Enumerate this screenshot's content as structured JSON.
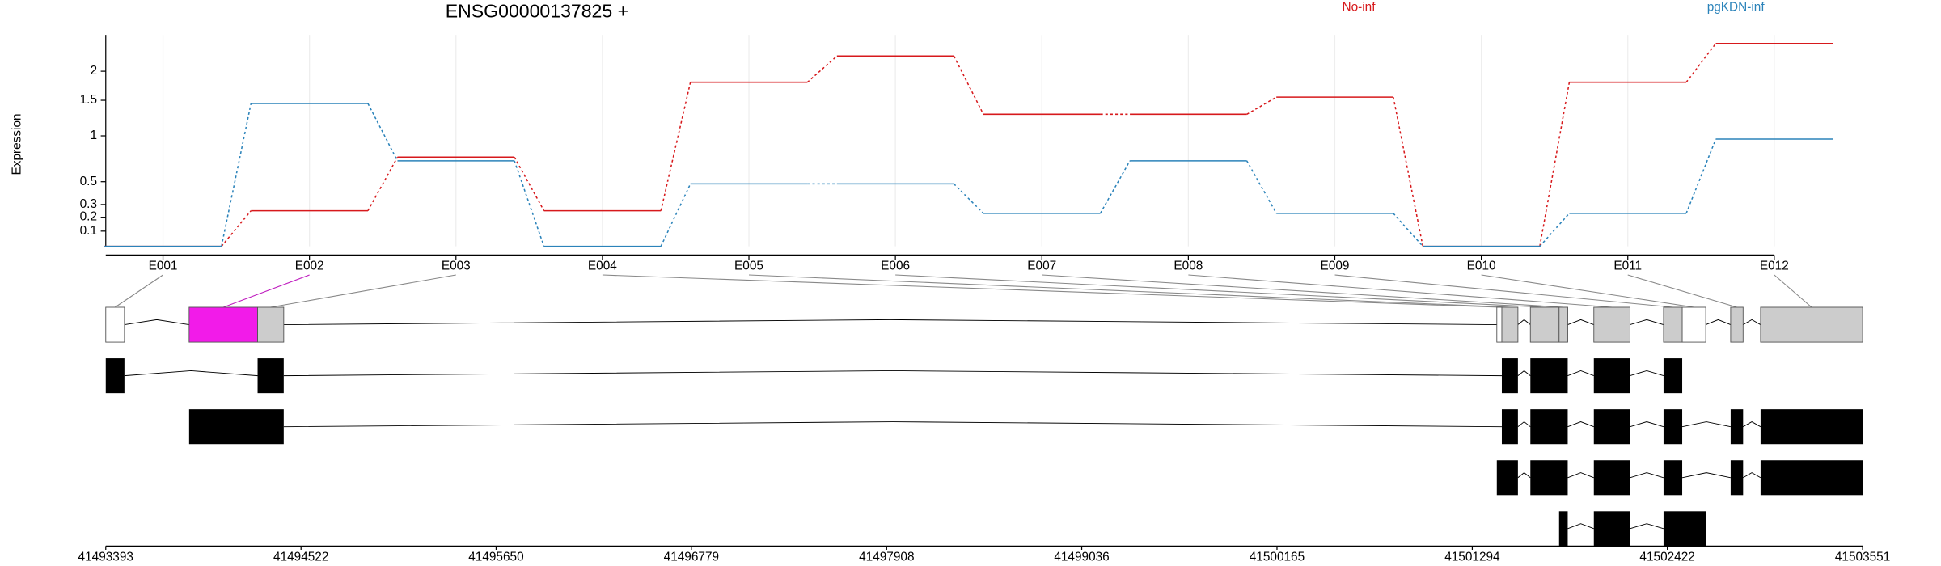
{
  "chart_data": [
    {
      "type": "line",
      "title": "ENSG00000137825 +",
      "y_label": "Expression",
      "categories": [
        "E001",
        "E002",
        "E003",
        "E004",
        "E005",
        "E006",
        "E007",
        "E008",
        "E009",
        "E010",
        "E011",
        "E012"
      ],
      "series": [
        {
          "name": "No-inf",
          "color": "#d7191c",
          "values": [
            0,
            0.25,
            0.75,
            0.25,
            1.8,
            2.3,
            1.29,
            1.29,
            1.55,
            0,
            1.8,
            2.57
          ]
        },
        {
          "name": "pgKDN-inf",
          "color": "#2b83ba",
          "values": [
            0,
            1.45,
            0.71,
            0,
            0.48,
            0.48,
            0.23,
            0.71,
            0.23,
            0,
            0.23,
            0.96
          ]
        }
      ],
      "yscale": "log1p",
      "ylim": [
        0,
        2.77
      ],
      "yticks": [
        0.1,
        0.2,
        0.3,
        0.5,
        1,
        1.5,
        2
      ],
      "grid": true,
      "legend": "top"
    },
    {
      "type": "gene_model",
      "xlim": [
        41493393,
        41503551
      ],
      "xticks": [
        41493393,
        41494522,
        41495650,
        41496779,
        41497908,
        41499036,
        41500165,
        41501294,
        41502422,
        41503551
      ],
      "exons": [
        {
          "start": 41493393,
          "end": 41493501,
          "fill": "#ffffff",
          "link_color": "#888888"
        },
        {
          "start": 41493875,
          "end": 41494271,
          "fill": "#f21be9",
          "link_color": "#c020c0"
        },
        {
          "start": 41494271,
          "end": 41494422,
          "fill": "#cccccc",
          "link_color": "#888888"
        },
        {
          "start": 41501436,
          "end": 41501465,
          "fill": "#ffffff",
          "link_color": "#888888"
        },
        {
          "start": 41501465,
          "end": 41501558,
          "fill": "#cccccc",
          "link_color": "#888888"
        },
        {
          "start": 41501630,
          "end": 41501796,
          "fill": "#cccccc",
          "link_color": "#888888"
        },
        {
          "start": 41501796,
          "end": 41501846,
          "fill": "#cccccc",
          "link_color": "#888888"
        },
        {
          "start": 41501997,
          "end": 41502206,
          "fill": "#cccccc",
          "link_color": "#888888"
        },
        {
          "start": 41502400,
          "end": 41502508,
          "fill": "#cccccc",
          "link_color": "#888888"
        },
        {
          "start": 41502508,
          "end": 41502644,
          "fill": "#ffffff",
          "link_color": "#888888"
        },
        {
          "start": 41502788,
          "end": 41502860,
          "fill": "#cccccc",
          "link_color": "#888888"
        },
        {
          "start": 41502961,
          "end": 41503551,
          "fill": "#cccccc",
          "link_color": "#888888"
        }
      ],
      "transcript_color": "#000000",
      "transcripts": [
        [
          [
            41493393,
            41493501
          ],
          [
            41494271,
            41494422
          ],
          [
            41501465,
            41501558
          ],
          [
            41501630,
            41501846
          ],
          [
            41501997,
            41502206
          ],
          [
            41502400,
            41502508
          ]
        ],
        [
          [
            41493875,
            41494422
          ],
          [
            41501465,
            41501558
          ],
          [
            41501630,
            41501846
          ],
          [
            41501997,
            41502206
          ],
          [
            41502400,
            41502508
          ],
          [
            41502788,
            41502860
          ],
          [
            41502961,
            41503551
          ]
        ],
        [
          [
            41501436,
            41501558
          ],
          [
            41501630,
            41501846
          ],
          [
            41501997,
            41502206
          ],
          [
            41502400,
            41502508
          ],
          [
            41502788,
            41502860
          ],
          [
            41502961,
            41503551
          ]
        ],
        [
          [
            41501796,
            41501846
          ],
          [
            41501997,
            41502206
          ],
          [
            41502400,
            41502644
          ]
        ]
      ]
    }
  ]
}
